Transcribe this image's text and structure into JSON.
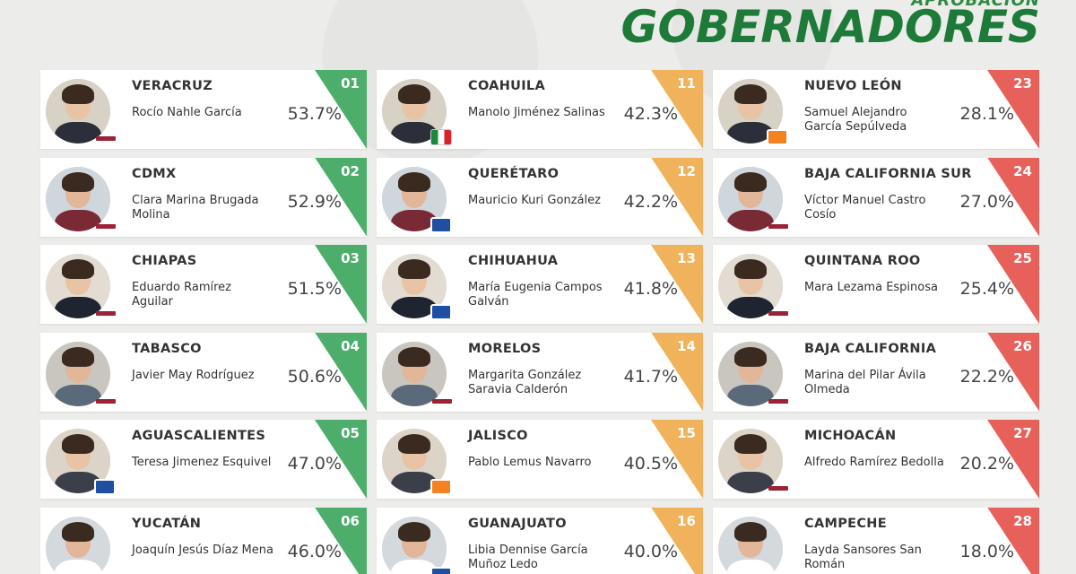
{
  "header": {
    "supertitle": "APROBACIÓN",
    "title": "GOBERNADORES"
  },
  "colors": {
    "green": "#4dae6b",
    "orange": "#f0b25a",
    "red": "#e8605a",
    "title_green": "#1e7a38"
  },
  "columns": [
    [
      {
        "rank": "01",
        "state": "VERACRUZ",
        "name": "Rocío Nahle García",
        "pct": "53.7%",
        "tier": "green",
        "party": "morena"
      },
      {
        "rank": "02",
        "state": "CDMX",
        "name": "Clara Marina Brugada Molina",
        "pct": "52.9%",
        "tier": "green",
        "party": "morena"
      },
      {
        "rank": "03",
        "state": "CHIAPAS",
        "name": "Eduardo Ramírez Aguilar",
        "pct": "51.5%",
        "tier": "green",
        "party": "morena"
      },
      {
        "rank": "04",
        "state": "TABASCO",
        "name": "Javier May Rodríguez",
        "pct": "50.6%",
        "tier": "green",
        "party": "morena"
      },
      {
        "rank": "05",
        "state": "AGUASCALIENTES",
        "name": "Teresa Jimenez Esquivel",
        "pct": "47.0%",
        "tier": "green",
        "party": "pan"
      },
      {
        "rank": "06",
        "state": "YUCATÁN",
        "name": "Joaquín Jesús Díaz Mena",
        "pct": "46.0%",
        "tier": "green",
        "party": "morena"
      }
    ],
    [
      {
        "rank": "11",
        "state": "COAHUILA",
        "name": "Manolo Jiménez Salinas",
        "pct": "42.3%",
        "tier": "orange",
        "party": "pri"
      },
      {
        "rank": "12",
        "state": "QUERÉTARO",
        "name": "Mauricio Kuri González",
        "pct": "42.2%",
        "tier": "orange",
        "party": "pan"
      },
      {
        "rank": "13",
        "state": "CHIHUAHUA",
        "name": "María Eugenia Campos Galván",
        "pct": "41.8%",
        "tier": "orange",
        "party": "pan"
      },
      {
        "rank": "14",
        "state": "MORELOS",
        "name": "Margarita González Saravia Calderón",
        "pct": "41.7%",
        "tier": "orange",
        "party": "morena"
      },
      {
        "rank": "15",
        "state": "JALISCO",
        "name": "Pablo Lemus Navarro",
        "pct": "40.5%",
        "tier": "orange",
        "party": "mc"
      },
      {
        "rank": "16",
        "state": "GUANAJUATO",
        "name": "Libia Dennise García Muñoz Ledo",
        "pct": "40.0%",
        "tier": "orange",
        "party": "pan"
      }
    ],
    [
      {
        "rank": "23",
        "state": "NUEVO LEÓN",
        "name": "Samuel Alejandro García Sepúlveda",
        "pct": "28.1%",
        "tier": "red",
        "party": "mc"
      },
      {
        "rank": "24",
        "state": "BAJA CALIFORNIA SUR",
        "name": "Víctor Manuel Castro Cosío",
        "pct": "27.0%",
        "tier": "red",
        "party": "morena"
      },
      {
        "rank": "25",
        "state": "QUINTANA ROO",
        "name": "Mara Lezama Espinosa",
        "pct": "25.4%",
        "tier": "red",
        "party": "morena"
      },
      {
        "rank": "26",
        "state": "BAJA CALIFORNIA",
        "name": "Marina del Pilar Ávila Olmeda",
        "pct": "22.2%",
        "tier": "red",
        "party": "morena"
      },
      {
        "rank": "27",
        "state": "MICHOACÁN",
        "name": "Alfredo Ramírez Bedolla",
        "pct": "20.2%",
        "tier": "red",
        "party": "morena"
      },
      {
        "rank": "28",
        "state": "CAMPECHE",
        "name": "Layda Sansores San Román",
        "pct": "18.0%",
        "tier": "red",
        "party": "morena"
      }
    ]
  ]
}
